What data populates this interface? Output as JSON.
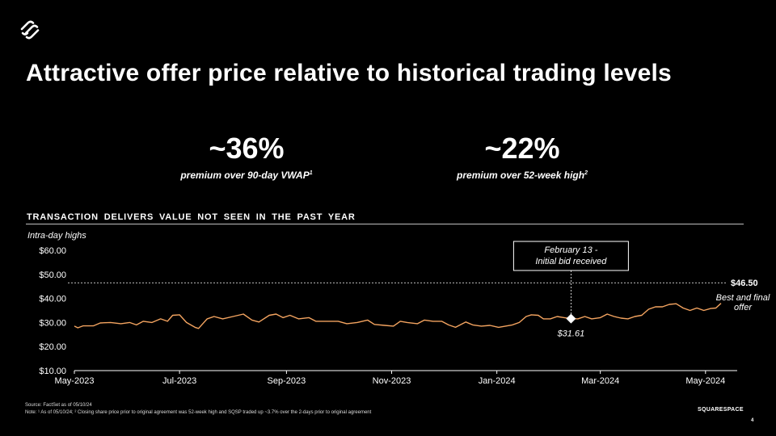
{
  "title": "Attractive offer price relative to historical trading levels",
  "stats": [
    {
      "value": "~36%",
      "label": "premium over 90-day VWAP",
      "footnote": "1"
    },
    {
      "value": "~22%",
      "label": "premium over 52-week high",
      "footnote": "2"
    }
  ],
  "section_heading": "TRANSACTION DELIVERS VALUE NOT SEEN IN THE PAST YEAR",
  "footer": {
    "source": "Source: FactSet as of 05/10/24",
    "note": "Note: ¹ As of 05/10/24;  ² Closing share price prior to original agreement was 52-week high and SQSP traded up ~3.7% over the 2-days prior to original agreement",
    "brand": "SQUARESPACE",
    "page": "4"
  },
  "colors": {
    "line": "#f4a460",
    "background": "#000000",
    "text": "#ffffff"
  },
  "chart_data": {
    "type": "line",
    "title": "Intra-day highs",
    "y_unit": "$",
    "ylim": [
      10,
      60
    ],
    "yticks": [
      10,
      20,
      30,
      40,
      50,
      60
    ],
    "ytick_labels": [
      "$10.00",
      "$20.00",
      "$30.00",
      "$40.00",
      "$50.00",
      "$60.00"
    ],
    "xlim": [
      "2023-05-01",
      "2024-05-10"
    ],
    "xticks": [
      "2023-05-01",
      "2023-07-01",
      "2023-09-01",
      "2023-11-01",
      "2024-01-01",
      "2024-03-01",
      "2024-05-01"
    ],
    "xtick_labels": [
      "May-2023",
      "Jul-2023",
      "Sep-2023",
      "Nov-2023",
      "Jan-2024",
      "Mar-2024",
      "May-2024"
    ],
    "series": [
      {
        "name": "Intra-day highs",
        "points": [
          [
            "2023-05-01",
            28.5
          ],
          [
            "2023-05-03",
            27.8
          ],
          [
            "2023-05-06",
            28.6
          ],
          [
            "2023-05-12",
            28.6
          ],
          [
            "2023-05-16",
            29.8
          ],
          [
            "2023-05-22",
            30.0
          ],
          [
            "2023-05-28",
            29.5
          ],
          [
            "2023-06-02",
            30.0
          ],
          [
            "2023-06-06",
            29.0
          ],
          [
            "2023-06-10",
            30.5
          ],
          [
            "2023-06-15",
            30.0
          ],
          [
            "2023-06-20",
            31.5
          ],
          [
            "2023-06-24",
            30.5
          ],
          [
            "2023-06-27",
            33.0
          ],
          [
            "2023-07-01",
            33.2
          ],
          [
            "2023-07-05",
            30.0
          ],
          [
            "2023-07-10",
            28.0
          ],
          [
            "2023-07-12",
            27.5
          ],
          [
            "2023-07-17",
            31.5
          ],
          [
            "2023-07-21",
            32.5
          ],
          [
            "2023-07-26",
            31.5
          ],
          [
            "2023-08-01",
            32.5
          ],
          [
            "2023-08-07",
            33.5
          ],
          [
            "2023-08-12",
            31.0
          ],
          [
            "2023-08-16",
            30.2
          ],
          [
            "2023-08-22",
            33.0
          ],
          [
            "2023-08-26",
            33.5
          ],
          [
            "2023-08-30",
            32.0
          ],
          [
            "2023-09-03",
            33.0
          ],
          [
            "2023-09-08",
            31.5
          ],
          [
            "2023-09-14",
            32.0
          ],
          [
            "2023-09-18",
            30.5
          ],
          [
            "2023-09-24",
            30.5
          ],
          [
            "2023-10-01",
            30.5
          ],
          [
            "2023-10-06",
            29.5
          ],
          [
            "2023-10-12",
            30.0
          ],
          [
            "2023-10-18",
            31.0
          ],
          [
            "2023-10-22",
            29.2
          ],
          [
            "2023-10-28",
            28.8
          ],
          [
            "2023-11-02",
            28.5
          ],
          [
            "2023-11-06",
            30.5
          ],
          [
            "2023-11-10",
            30.0
          ],
          [
            "2023-11-16",
            29.5
          ],
          [
            "2023-11-20",
            31.0
          ],
          [
            "2023-11-25",
            30.5
          ],
          [
            "2023-11-30",
            30.5
          ],
          [
            "2023-12-04",
            29.0
          ],
          [
            "2023-12-08",
            28.0
          ],
          [
            "2023-12-14",
            30.2
          ],
          [
            "2023-12-18",
            29.0
          ],
          [
            "2023-12-23",
            28.5
          ],
          [
            "2023-12-28",
            28.8
          ],
          [
            "2024-01-02",
            28.0
          ],
          [
            "2024-01-06",
            28.5
          ],
          [
            "2024-01-10",
            29.0
          ],
          [
            "2024-01-14",
            30.0
          ],
          [
            "2024-01-18",
            32.5
          ],
          [
            "2024-01-21",
            33.2
          ],
          [
            "2024-01-25",
            33.0
          ],
          [
            "2024-01-28",
            31.5
          ],
          [
            "2024-02-01",
            31.5
          ],
          [
            "2024-02-05",
            32.5
          ],
          [
            "2024-02-09",
            32.0
          ],
          [
            "2024-02-13",
            31.61
          ],
          [
            "2024-02-17",
            31.5
          ],
          [
            "2024-02-21",
            32.5
          ],
          [
            "2024-02-25",
            31.5
          ],
          [
            "2024-03-01",
            32.0
          ],
          [
            "2024-03-05",
            33.5
          ],
          [
            "2024-03-09",
            32.5
          ],
          [
            "2024-03-13",
            31.8
          ],
          [
            "2024-03-17",
            31.5
          ],
          [
            "2024-03-21",
            32.5
          ],
          [
            "2024-03-25",
            33.0
          ],
          [
            "2024-03-29",
            35.5
          ],
          [
            "2024-04-02",
            36.5
          ],
          [
            "2024-04-06",
            36.5
          ],
          [
            "2024-04-10",
            37.5
          ],
          [
            "2024-04-14",
            37.8
          ],
          [
            "2024-04-18",
            36.0
          ],
          [
            "2024-04-22",
            35.0
          ],
          [
            "2024-04-26",
            36.0
          ],
          [
            "2024-04-30",
            35.0
          ],
          [
            "2024-05-04",
            35.8
          ],
          [
            "2024-05-07",
            36.0
          ],
          [
            "2024-05-10",
            38.0
          ]
        ]
      }
    ],
    "reference_line": {
      "value": 46.5,
      "label": "$46.50",
      "note": "Best and final offer"
    },
    "annotations": [
      {
        "date": "2024-02-13",
        "value": 31.61,
        "label": "$31.61",
        "callout": "February 13 - Initial bid received"
      }
    ]
  }
}
